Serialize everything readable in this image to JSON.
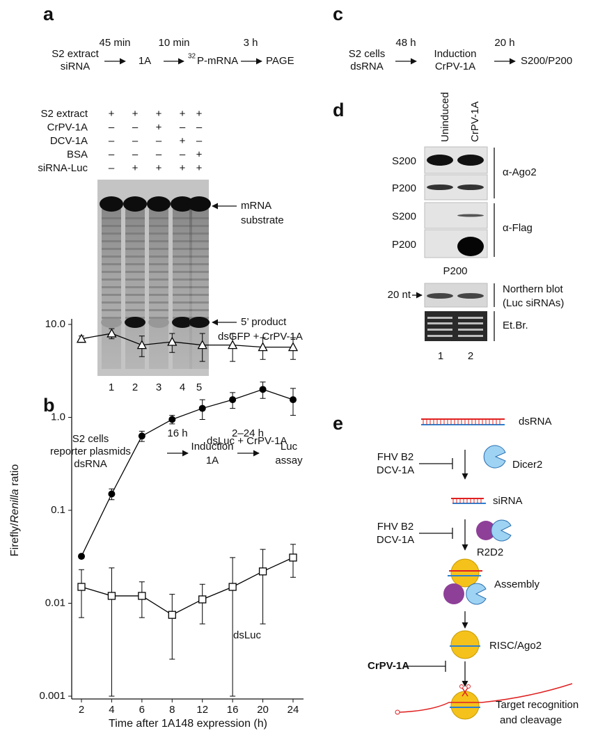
{
  "panel_a": {
    "label": "a",
    "workflow": {
      "start": [
        "S2 extract",
        "siRNA"
      ],
      "times": [
        "45 min",
        "10 min",
        "3 h"
      ],
      "step1": "1A",
      "isotope": "32",
      "step2": "P-mRNA",
      "step3": "PAGE"
    },
    "conditions": {
      "rows": [
        "S2 extract",
        "CrPV-1A",
        "DCV-1A",
        "BSA",
        "siRNA-Luc"
      ],
      "signs": [
        [
          "+",
          "+",
          "+",
          "+",
          "+"
        ],
        [
          "–",
          "–",
          "+",
          "–",
          "–"
        ],
        [
          "–",
          "–",
          "–",
          "+",
          "–"
        ],
        [
          "–",
          "–",
          "–",
          "–",
          "+"
        ],
        [
          "–",
          "+",
          "+",
          "+",
          "+"
        ]
      ]
    },
    "lanes": [
      "1",
      "2",
      "3",
      "4",
      "5"
    ],
    "band_labels": {
      "substrate": [
        "mRNA",
        "substrate"
      ],
      "product": "5’ product"
    }
  },
  "panel_b": {
    "label": "b",
    "workflow": {
      "start": [
        "S2 cells",
        "reporter plasmids",
        "dsRNA"
      ],
      "times": [
        "16 h",
        "2–24 h"
      ],
      "step1": [
        "Induction",
        "1A"
      ],
      "step2": [
        "Luc",
        "assay"
      ]
    }
  },
  "panel_c": {
    "label": "c",
    "workflow": {
      "start": [
        "S2 cells",
        "dsRNA"
      ],
      "times": [
        "48 h",
        "20 h"
      ],
      "step1": [
        "Induction",
        "CrPV-1A"
      ],
      "step2": "S200/P200"
    }
  },
  "panel_d": {
    "label": "d",
    "columns": [
      "Uninduced",
      "CrPV-1A"
    ],
    "fractions": [
      "S200",
      "P200",
      "S200",
      "P200"
    ],
    "antibodies": [
      "α-Ago2",
      "α-Flag"
    ],
    "northern_header": "P200",
    "size_marker": "20 nt",
    "northern_label": [
      "Northern blot",
      "(Luc siRNAs)"
    ],
    "stain": "Et.Br.",
    "lanes": [
      "1",
      "2"
    ]
  },
  "panel_e": {
    "label": "e",
    "dsrna": "dsRNA",
    "inhibitors_1": [
      "FHV B2",
      "DCV-1A"
    ],
    "dicer": "Dicer2",
    "sirna": "siRNA",
    "inhibitors_2": [
      "FHV B2",
      "DCV-1A"
    ],
    "r2d2": "R2D2",
    "assembly": "Assembly",
    "risc": "RISC/Ago2",
    "inhibitor_3": "CrPV-1A",
    "target": [
      "Target recognition",
      "and cleavage"
    ]
  },
  "chart_data": {
    "type": "line",
    "log_scale": true,
    "x_label": "Time after 1A148 expression (h)",
    "y_label": [
      "Firefly/",
      "Renilla",
      " ratio"
    ],
    "categories": [
      "2",
      "4",
      "6",
      "8",
      "12",
      "16",
      "20",
      "24"
    ],
    "ylim": [
      0.001,
      10
    ],
    "yticks": [
      0.001,
      0.01,
      0.1,
      {
        "value": 1,
        "label": "1.0"
      },
      {
        "value": 10,
        "label": "10.0"
      }
    ],
    "series": [
      {
        "name": "dsGFP + CrPV-1A",
        "marker": "triangle",
        "color": "#000000",
        "values": [
          7,
          8,
          6,
          6.5,
          6,
          6,
          5.7,
          5.7
        ],
        "errors": [
          0.5,
          1.0,
          1.5,
          1.5,
          2,
          2,
          1.5,
          1.5
        ]
      },
      {
        "name": "dsLuc + CrPV-1A",
        "marker": "circle",
        "color": "#000000",
        "values": [
          0.032,
          0.15,
          0.63,
          0.95,
          1.25,
          1.55,
          2.0,
          1.55
        ],
        "errors": [
          0,
          0.02,
          0.08,
          0.1,
          0.3,
          0.3,
          0.4,
          0.5
        ]
      },
      {
        "name": "dsLuc",
        "marker": "square",
        "color": "#000000",
        "values": [
          0.015,
          0.012,
          0.012,
          0.0075,
          0.011,
          0.015,
          0.022,
          0.031
        ],
        "errors": [
          0.008,
          0.012,
          0.005,
          0.005,
          0.005,
          0.016,
          0.016,
          0.012
        ]
      }
    ]
  }
}
